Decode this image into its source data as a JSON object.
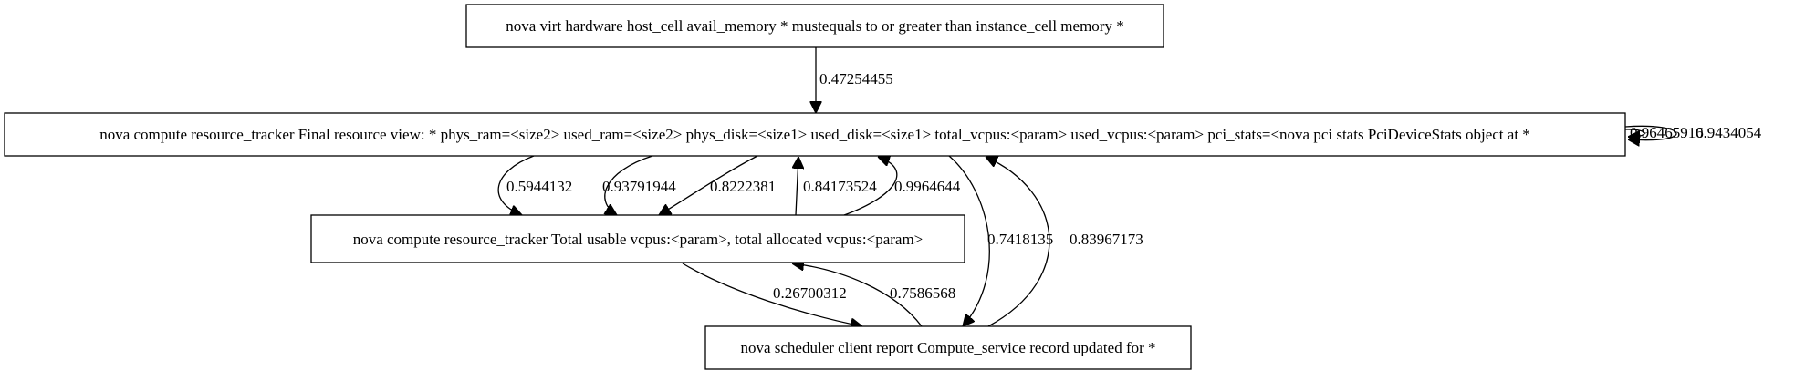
{
  "nodes": {
    "avail_memory": {
      "label": "nova virt hardware host_cell avail_memory * mustequals to or greater than instance_cell memory *"
    },
    "final_view": {
      "label": "nova compute resource_tracker Final resource view: * phys_ram=<size2> used_ram=<size2> phys_disk=<size1> used_disk=<size1> total_vcpus:<param> used_vcpus:<param> pci_stats=<nova pci stats PciDeviceStats object at *"
    },
    "total_usable": {
      "label": "nova compute resource_tracker Total usable vcpus:<param>, total allocated vcpus:<param>"
    },
    "scheduler": {
      "label": "nova scheduler client report Compute_service record updated for *"
    }
  },
  "edges": {
    "e1": {
      "from": "avail_memory",
      "to": "final_view",
      "label": "0.47254455"
    },
    "e2": {
      "from": "final_view",
      "to": "total_usable",
      "label": "0.5944132"
    },
    "e3": {
      "from": "final_view",
      "to": "total_usable",
      "label": "0.93791944"
    },
    "e4": {
      "from": "final_view",
      "to": "total_usable",
      "label": "0.8222381"
    },
    "e5": {
      "from": "total_usable",
      "to": "final_view",
      "label": "0.84173524"
    },
    "e6": {
      "from": "total_usable",
      "to": "final_view",
      "label": "0.9964644"
    },
    "e7": {
      "from": "final_view",
      "to": "scheduler",
      "label": "0.7418135"
    },
    "e8": {
      "from": "scheduler",
      "to": "final_view",
      "label": "0.83967173"
    },
    "e9": {
      "from": "total_usable",
      "to": "scheduler",
      "label": "0.26700312"
    },
    "e10": {
      "from": "scheduler",
      "to": "total_usable",
      "label": "0.7586568"
    },
    "e11": {
      "from": "final_view",
      "to": "final_view",
      "label": "0.96465916"
    },
    "e12": {
      "from": "final_view",
      "to": "final_view",
      "label": "0.9434054"
    }
  }
}
